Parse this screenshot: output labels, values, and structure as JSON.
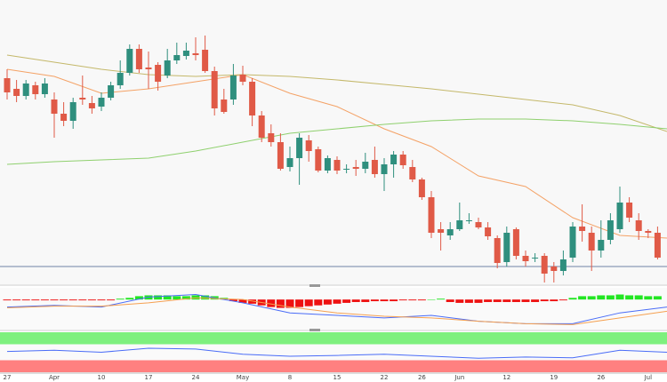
{
  "chart_data": {
    "type": "candlestick",
    "categories": [
      "27",
      null,
      null,
      null,
      null,
      "Apr",
      null,
      null,
      null,
      null,
      "10",
      null,
      null,
      null,
      null,
      "17",
      null,
      null,
      null,
      null,
      "24",
      null,
      null,
      null,
      null,
      "May",
      null,
      null,
      null,
      null,
      "8",
      null,
      null,
      null,
      null,
      "15",
      null,
      null,
      null,
      null,
      "22",
      null,
      null,
      null,
      "26",
      null,
      null,
      null,
      "Jun",
      null,
      null,
      null,
      null,
      "12",
      null,
      null,
      null,
      null,
      "19",
      null,
      null,
      null,
      null,
      "26",
      null,
      null,
      null,
      null,
      "Jul",
      null
    ],
    "open": [
      232,
      220,
      212,
      224,
      214,
      208,
      192,
      184,
      210,
      204,
      200,
      210,
      224,
      238,
      265,
      244,
      247,
      235,
      252,
      257,
      260,
      264,
      240,
      208,
      208,
      236,
      228,
      190,
      170,
      160,
      132,
      142,
      162,
      152,
      128,
      140,
      130,
      132,
      130,
      140,
      124,
      135,
      146,
      132,
      118,
      98,
      62,
      55,
      62,
      72,
      70,
      64,
      52,
      25,
      62,
      32,
      30,
      32,
      20,
      15,
      30,
      65,
      58,
      38,
      50,
      62,
      92,
      72,
      60,
      58
    ],
    "high": [
      242,
      230,
      230,
      228,
      232,
      216,
      205,
      210,
      235,
      212,
      216,
      228,
      252,
      270,
      270,
      262,
      250,
      265,
      272,
      272,
      278,
      280,
      245,
      220,
      248,
      246,
      232,
      195,
      180,
      170,
      155,
      170,
      168,
      155,
      145,
      144,
      135,
      140,
      148,
      155,
      142,
      150,
      150,
      140,
      120,
      105,
      70,
      70,
      92,
      80,
      75,
      70,
      55,
      65,
      64,
      38,
      35,
      35,
      25,
      38,
      70,
      90,
      65,
      72,
      80,
      110,
      98,
      80,
      62,
      65
    ],
    "low": [
      208,
      205,
      208,
      208,
      210,
      165,
      178,
      175,
      202,
      192,
      195,
      207,
      220,
      235,
      238,
      220,
      218,
      232,
      248,
      253,
      252,
      238,
      190,
      192,
      202,
      224,
      178,
      160,
      155,
      128,
      127,
      112,
      138,
      126,
      125,
      124,
      125,
      122,
      125,
      120,
      105,
      120,
      130,
      115,
      95,
      52,
      38,
      50,
      60,
      68,
      62,
      50,
      18,
      20,
      28,
      20,
      25,
      2,
      2,
      10,
      25,
      48,
      15,
      30,
      45,
      58,
      70,
      50,
      52,
      28
    ],
    "close": [
      216,
      212,
      226,
      214,
      226,
      192,
      184,
      205,
      208,
      198,
      210,
      224,
      238,
      265,
      242,
      242,
      228,
      252,
      258,
      263,
      258,
      240,
      198,
      194,
      235,
      228,
      190,
      165,
      160,
      130,
      142,
      165,
      150,
      128,
      142,
      128,
      130,
      130,
      138,
      124,
      135,
      146,
      134,
      118,
      98,
      58,
      58,
      62,
      72,
      72,
      64,
      54,
      24,
      58,
      32,
      26,
      30,
      12,
      15,
      28,
      65,
      60,
      38,
      50,
      72,
      92,
      75,
      60,
      58,
      30
    ],
    "up_color": "#2f8f7e",
    "down_color": "#e05a47",
    "ylim": [
      0,
      320
    ],
    "support_level": 20,
    "support_color": "#6f84a6",
    "moving_averages": [
      {
        "color": "#f4a266",
        "x": [
          0,
          5,
          10,
          15,
          20,
          25,
          30,
          35,
          40,
          45,
          50,
          55,
          60,
          65,
          70
        ],
        "values": [
          242,
          234,
          215,
          220,
          228,
          236,
          215,
          200,
          175,
          155,
          122,
          110,
          75,
          55,
          52
        ]
      },
      {
        "color": "#c4b86a",
        "x": [
          0,
          5,
          10,
          15,
          20,
          25,
          30,
          35,
          40,
          45,
          50,
          55,
          60,
          65,
          70
        ],
        "values": [
          258,
          250,
          242,
          236,
          234,
          236,
          234,
          230,
          225,
          220,
          214,
          208,
          202,
          190,
          172
        ]
      },
      {
        "color": "#8fd06e",
        "x": [
          0,
          5,
          10,
          15,
          20,
          25,
          30,
          35,
          40,
          45,
          50,
          55,
          60,
          65,
          70
        ],
        "values": [
          135,
          138,
          140,
          142,
          150,
          160,
          170,
          175,
          180,
          184,
          186,
          186,
          184,
          180,
          175
        ]
      }
    ],
    "macd": {
      "ylim": [
        -36,
        14
      ],
      "up_color": "#22e622",
      "down_color": "#ee1111",
      "histogram": [
        -1,
        -1,
        -1,
        -1,
        -1,
        -1,
        -1,
        -1,
        -1,
        -1,
        -1,
        -1,
        1,
        2,
        4,
        5,
        5,
        5,
        4,
        4,
        5,
        5,
        4,
        2,
        -2,
        -4,
        -5,
        -7,
        -9,
        -10,
        -10,
        -9,
        -8,
        -7,
        -6,
        -5,
        -4,
        -3,
        -3,
        -2,
        -2,
        -2,
        -1,
        -1,
        -1,
        0,
        1,
        -3,
        -4,
        -4,
        -4,
        -3,
        -3,
        -3,
        -3,
        -3,
        -3,
        -2,
        -2,
        -1,
        2,
        4,
        4,
        5,
        5,
        6,
        5,
        5,
        4,
        4
      ],
      "lines": [
        {
          "color": "#4a6cf7",
          "x": [
            0,
            5,
            10,
            15,
            20,
            25,
            30,
            35,
            40,
            45,
            50,
            55,
            60,
            65,
            70
          ],
          "values": [
            -9,
            -7,
            -9,
            3,
            6,
            -4,
            -16,
            -19,
            -22,
            -19,
            -26,
            -29,
            -29,
            -16,
            -9
          ]
        },
        {
          "color": "#f5a050",
          "x": [
            0,
            5,
            10,
            15,
            20,
            25,
            30,
            35,
            40,
            45,
            50,
            55,
            60,
            65,
            70
          ],
          "values": [
            -10,
            -8,
            -8,
            -4,
            2,
            0,
            -9,
            -16,
            -20,
            -22,
            -26,
            -29,
            -30,
            -22,
            -14
          ]
        }
      ]
    },
    "rsi": {
      "ylim": [
        0,
        100
      ],
      "upper_band": [
        70,
        100
      ],
      "lower_band": [
        0,
        30
      ],
      "upper_color": "#7ef07e",
      "lower_color": "#ff8080",
      "line": {
        "color": "#4a6cf7",
        "x": [
          0,
          5,
          10,
          15,
          20,
          25,
          30,
          35,
          40,
          45,
          50,
          55,
          60,
          65,
          70
        ],
        "values": [
          52,
          55,
          50,
          60,
          58,
          45,
          40,
          42,
          45,
          40,
          35,
          38,
          36,
          55,
          50
        ]
      }
    }
  }
}
